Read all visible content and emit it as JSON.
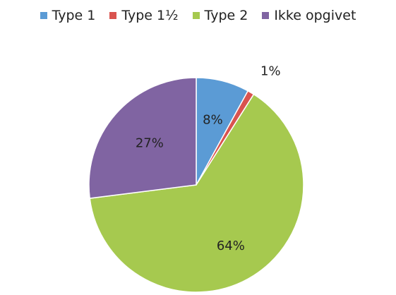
{
  "chart_data": {
    "type": "pie",
    "categories": [
      "Type 1",
      "Type 1½",
      "Type 2",
      "Ikke opgivet"
    ],
    "values": [
      8,
      1,
      64,
      27
    ],
    "value_labels": [
      "8%",
      "1%",
      "64%",
      "27%"
    ],
    "colors": [
      "#5b9bd5",
      "#d9534f",
      "#a6c94f",
      "#8064a2"
    ],
    "title": "",
    "legend_position": "top"
  }
}
